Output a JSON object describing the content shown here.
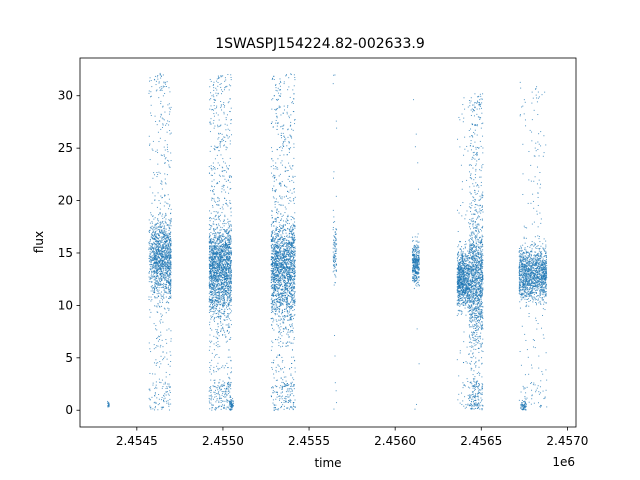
{
  "chart_data": {
    "type": "scatter",
    "title": "1SWASPJ154224.82-002633.9",
    "xlabel": "time",
    "ylabel": "flux",
    "x_offset_label": "1e6",
    "x_tick_labels": [
      "2.4545",
      "2.4550",
      "2.4555",
      "2.4560",
      "2.4565",
      "2.4570"
    ],
    "y_tick_labels": [
      "0",
      "5",
      "10",
      "15",
      "20",
      "25",
      "30"
    ],
    "x_ticks": [
      2454500,
      2455000,
      2455500,
      2456000,
      2456500,
      2457000
    ],
    "y_ticks": [
      0,
      5,
      10,
      15,
      20,
      25,
      30
    ],
    "xlim": [
      2454170,
      2457050
    ],
    "ylim": [
      -1.6,
      33.6
    ],
    "grid": false,
    "marker_color": "#1f77b4",
    "series": [
      {
        "clusters": [
          {
            "x": [
              2454330,
              2454340
            ],
            "y_center": 0.5,
            "y_spread": 0.25,
            "density": 20,
            "tail": 0
          },
          {
            "x": [
              2454570,
              2454600
            ],
            "y_center": 14.5,
            "y_spread": 3.0,
            "density": 220,
            "tail": 0.2
          },
          {
            "x": [
              2454600,
              2454700
            ],
            "y_center": 14.5,
            "y_spread": 3.2,
            "density": 1400,
            "tail": 0.25
          },
          {
            "x": [
              2454920,
              2455050
            ],
            "y_center": 13.5,
            "y_spread": 3.6,
            "density": 2400,
            "tail": 0.3
          },
          {
            "x": [
              2455040,
              2455060
            ],
            "y_center": 0.5,
            "y_spread": 0.5,
            "density": 60,
            "tail": 0
          },
          {
            "x": [
              2455280,
              2455420
            ],
            "y_center": 13.5,
            "y_spread": 3.8,
            "density": 2400,
            "tail": 0.3
          },
          {
            "x": [
              2455640,
              2455660
            ],
            "y_center": 15,
            "y_spread": 2.2,
            "density": 110,
            "tail": 0.15
          },
          {
            "x": [
              2456100,
              2456140
            ],
            "y_center": 14,
            "y_spread": 1.6,
            "density": 380,
            "tail": 0.02
          },
          {
            "x": [
              2456360,
              2456430
            ],
            "y_center": 12.5,
            "y_spread": 2.3,
            "density": 900,
            "tail": 0.08
          },
          {
            "x": [
              2456430,
              2456510
            ],
            "y_center": 12.5,
            "y_spread": 4.5,
            "density": 1500,
            "tail": 0.35
          },
          {
            "x": [
              2456720,
              2456790
            ],
            "y_center": 13,
            "y_spread": 2.1,
            "density": 650,
            "tail": 0.1
          },
          {
            "x": [
              2456730,
              2456760
            ],
            "y_center": 0.5,
            "y_spread": 0.45,
            "density": 60,
            "tail": 0
          },
          {
            "x": [
              2456790,
              2456850
            ],
            "y_center": 13,
            "y_spread": 2.1,
            "density": 550,
            "tail": 0.2
          },
          {
            "x": [
              2456850,
              2456880
            ],
            "y_center": 13,
            "y_spread": 2.1,
            "density": 300,
            "tail": 0.1
          }
        ]
      }
    ]
  }
}
